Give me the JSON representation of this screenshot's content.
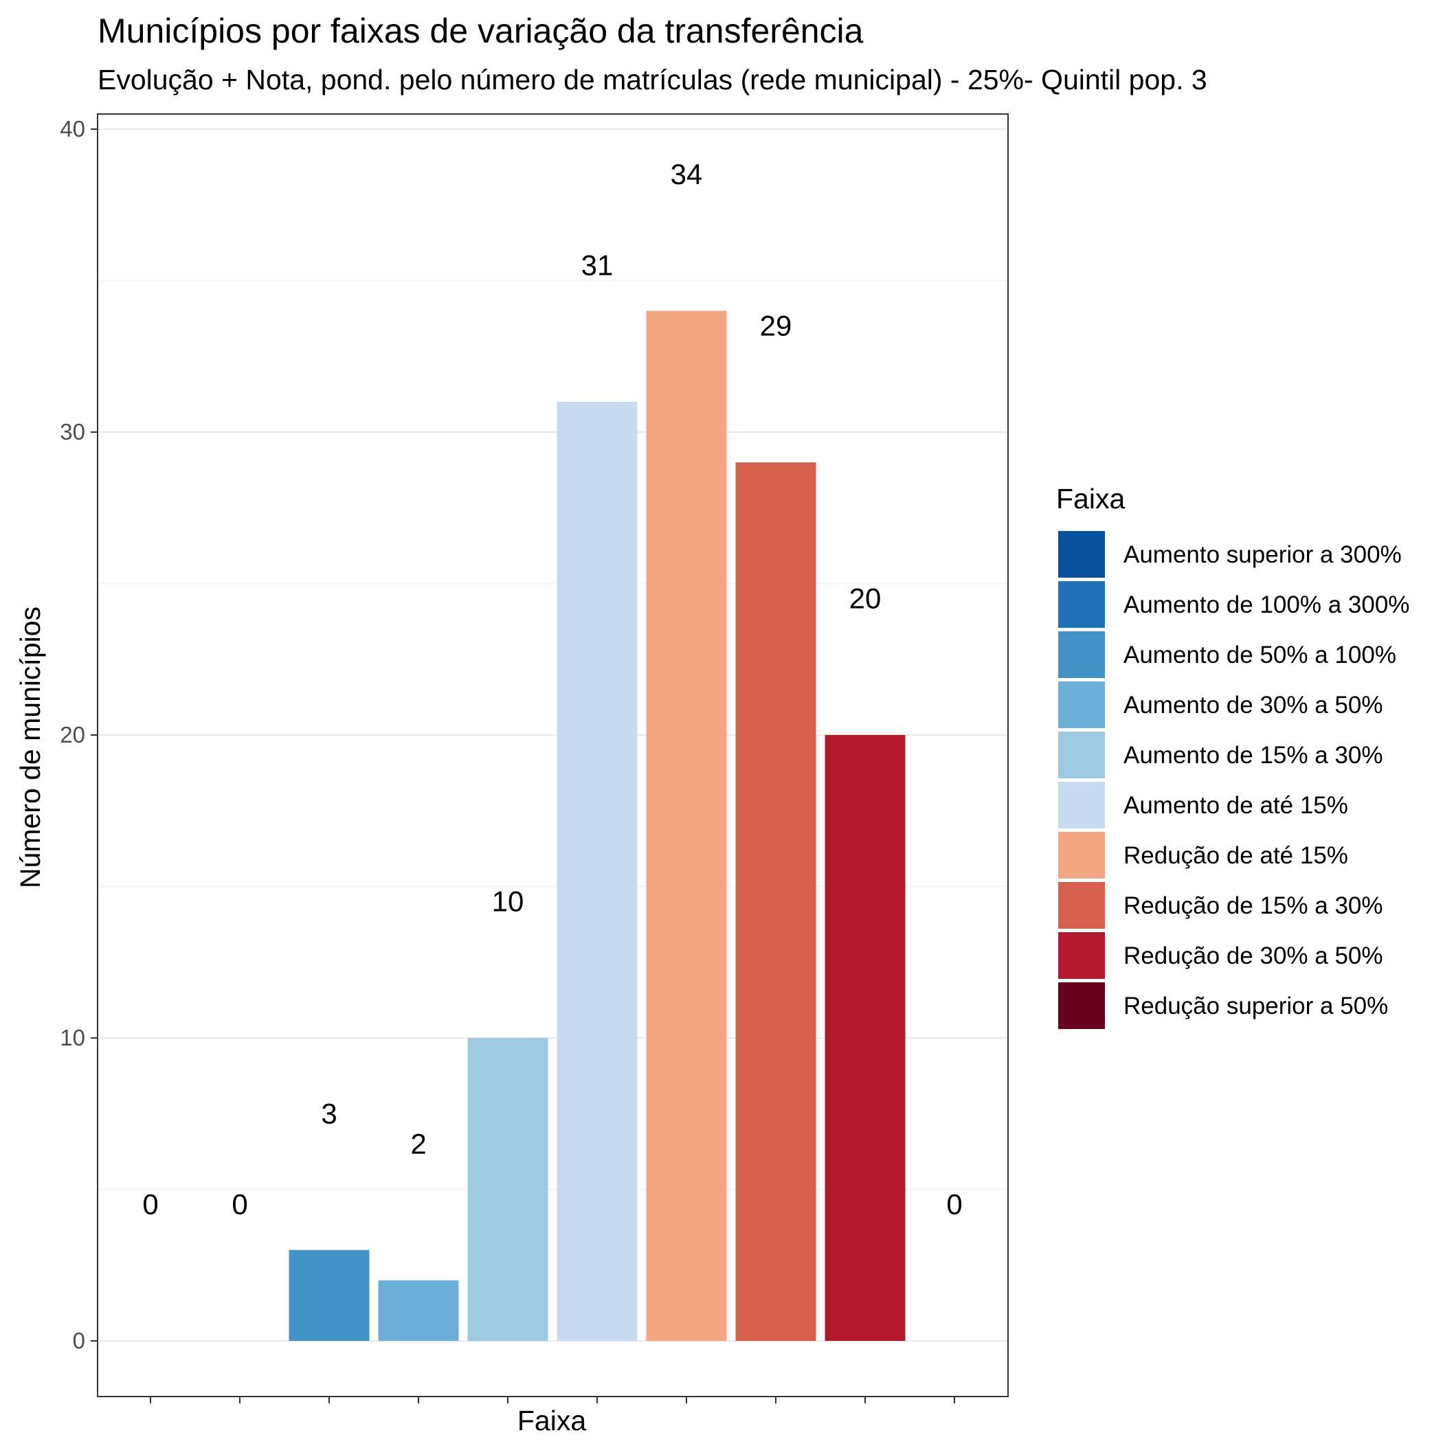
{
  "chart_data": {
    "type": "bar",
    "title": "Municípios por faixas de variação da transferência",
    "subtitle": "Evolução + Nota, pond. pelo número de matrículas (rede municipal) - 25%- Quintil pop. 3",
    "xlabel": "Faixa",
    "ylabel": "Número de municípios",
    "ylim": [
      -2,
      40.5
    ],
    "yticks": [
      0,
      10,
      20,
      30,
      40
    ],
    "grid": true,
    "legend_position": "right",
    "legend_title": "Faixa",
    "categories": [
      "Aumento superior a 300%",
      "Aumento de 100% a 300%",
      "Aumento de 50% a 100%",
      "Aumento de 30% a 50%",
      "Aumento de 15% a 30%",
      "Aumento de até 15%",
      "Redução de até 15%",
      "Redução de 15% a 30%",
      "Redução de 30% a 50%",
      "Redução superior a 50%"
    ],
    "values": [
      0,
      0,
      3,
      2,
      10,
      31,
      34,
      29,
      20,
      0
    ],
    "colors": [
      "#08519c",
      "#2171b5",
      "#4292c6",
      "#6baed6",
      "#9ecae1",
      "#c6dbef",
      "#f4a582",
      "#d6604d",
      "#b2182b",
      "#67001f"
    ]
  }
}
